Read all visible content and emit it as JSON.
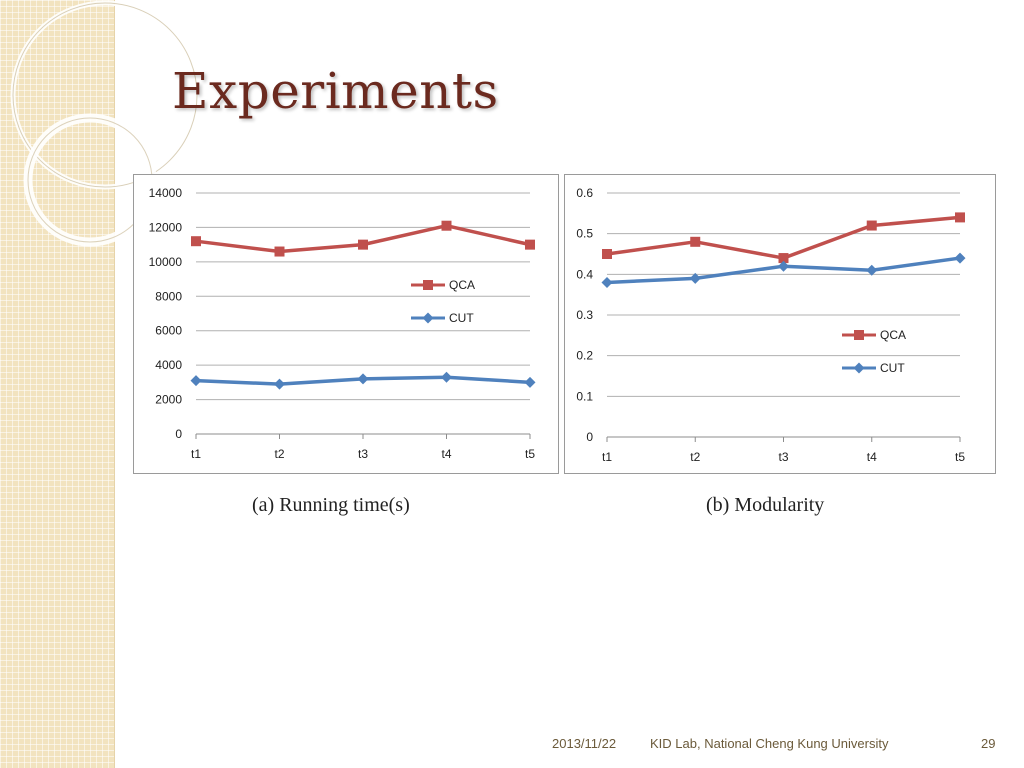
{
  "slide": {
    "title": "Experiments",
    "captions": [
      "(a) Running time(s)",
      "(b) Modularity"
    ],
    "footer": {
      "date": "2013/11/22",
      "organization": "KID Lab, National Cheng Kung University",
      "page": "29"
    }
  },
  "colors": {
    "qca": "#c0504d",
    "cut": "#4f81bd",
    "title": "#6b2a1f",
    "side_band": "#f2e3bf"
  },
  "chart_data": [
    {
      "type": "line",
      "categories": [
        "t1",
        "t2",
        "t3",
        "t4",
        "t5"
      ],
      "series": [
        {
          "name": "QCA",
          "values": [
            11200,
            10600,
            11000,
            12100,
            11000
          ],
          "marker": "square"
        },
        {
          "name": "CUT",
          "values": [
            3100,
            2900,
            3200,
            3300,
            3000
          ],
          "marker": "diamond"
        }
      ],
      "yticks": [
        "0",
        "2000",
        "4000",
        "6000",
        "8000",
        "10000",
        "12000",
        "14000"
      ],
      "ylim": [
        0,
        14000
      ],
      "grid": true,
      "legend": "right"
    },
    {
      "type": "line",
      "categories": [
        "t1",
        "t2",
        "t3",
        "t4",
        "t5"
      ],
      "series": [
        {
          "name": "QCA",
          "values": [
            0.45,
            0.48,
            0.44,
            0.52,
            0.54
          ],
          "marker": "square"
        },
        {
          "name": "CUT",
          "values": [
            0.38,
            0.39,
            0.42,
            0.41,
            0.44
          ],
          "marker": "diamond"
        }
      ],
      "yticks": [
        "0",
        "0.1",
        "0.2",
        "0.3",
        "0.4",
        "0.5",
        "0.6"
      ],
      "ylim": [
        0,
        0.6
      ],
      "grid": true,
      "legend": "lower-right"
    }
  ]
}
